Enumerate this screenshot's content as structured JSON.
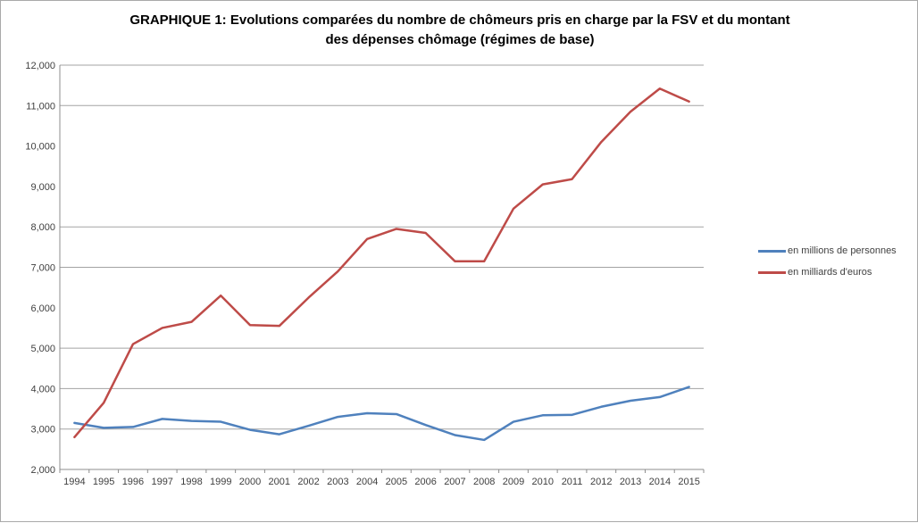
{
  "frame": {
    "background": "#ffffff",
    "border_color": "#a9a9a9"
  },
  "title": {
    "line1": "GRAPHIQUE 1: Evolutions comparées du nombre de chômeurs pris en charge par la FSV et du montant",
    "line2": "des dépenses chômage (régimes de base)"
  },
  "legend": {
    "position": "right",
    "items": [
      {
        "label": "en millions de personnes",
        "color": "#4F81BD"
      },
      {
        "label": "en milliards d'euros",
        "color": "#BE4B48"
      }
    ]
  },
  "chart_data": {
    "type": "line",
    "title": "GRAPHIQUE 1: Evolutions comparées du nombre de chômeurs pris en charge par la FSV et du montant des dépenses chômage (régimes de base)",
    "x": [
      "1994",
      "1995",
      "1996",
      "1997",
      "1998",
      "1999",
      "2000",
      "2001",
      "2002",
      "2003",
      "2004",
      "2005",
      "2006",
      "2007",
      "2008",
      "2009",
      "2010",
      "2011",
      "2012",
      "2013",
      "2014",
      "2015"
    ],
    "series": [
      {
        "name": "en millions de personnes",
        "color": "#4F81BD",
        "values": [
          3150,
          3030,
          3050,
          3250,
          3200,
          3180,
          2980,
          2870,
          3080,
          3300,
          3390,
          3370,
          3100,
          2850,
          2730,
          3180,
          3340,
          3350,
          3550,
          3700,
          3790,
          4040
        ]
      },
      {
        "name": "en milliards d'euros",
        "color": "#BE4B48",
        "values": [
          2800,
          3650,
          5100,
          5500,
          5650,
          6300,
          5570,
          5550,
          6250,
          6900,
          7700,
          7950,
          7850,
          7150,
          7150,
          8450,
          9050,
          9180,
          10100,
          10850,
          11420,
          11100
        ]
      }
    ],
    "xlabel": "",
    "ylabel": "",
    "ylim": [
      2000,
      12000
    ],
    "ytick_step": 1000,
    "ytick_labels": [
      "2,000",
      "3,000",
      "4,000",
      "5,000",
      "6,000",
      "7,000",
      "8,000",
      "9,000",
      "10,000",
      "11,000",
      "12,000"
    ],
    "gridlines_at": [
      3000,
      4000,
      5000,
      7000,
      8000,
      11000,
      12000
    ],
    "grid": true,
    "legend_position": "right",
    "axis_color": "#8c8c8c",
    "gridline_color": "#a3a3a3",
    "tick_label_color": "#3f3f3f"
  }
}
